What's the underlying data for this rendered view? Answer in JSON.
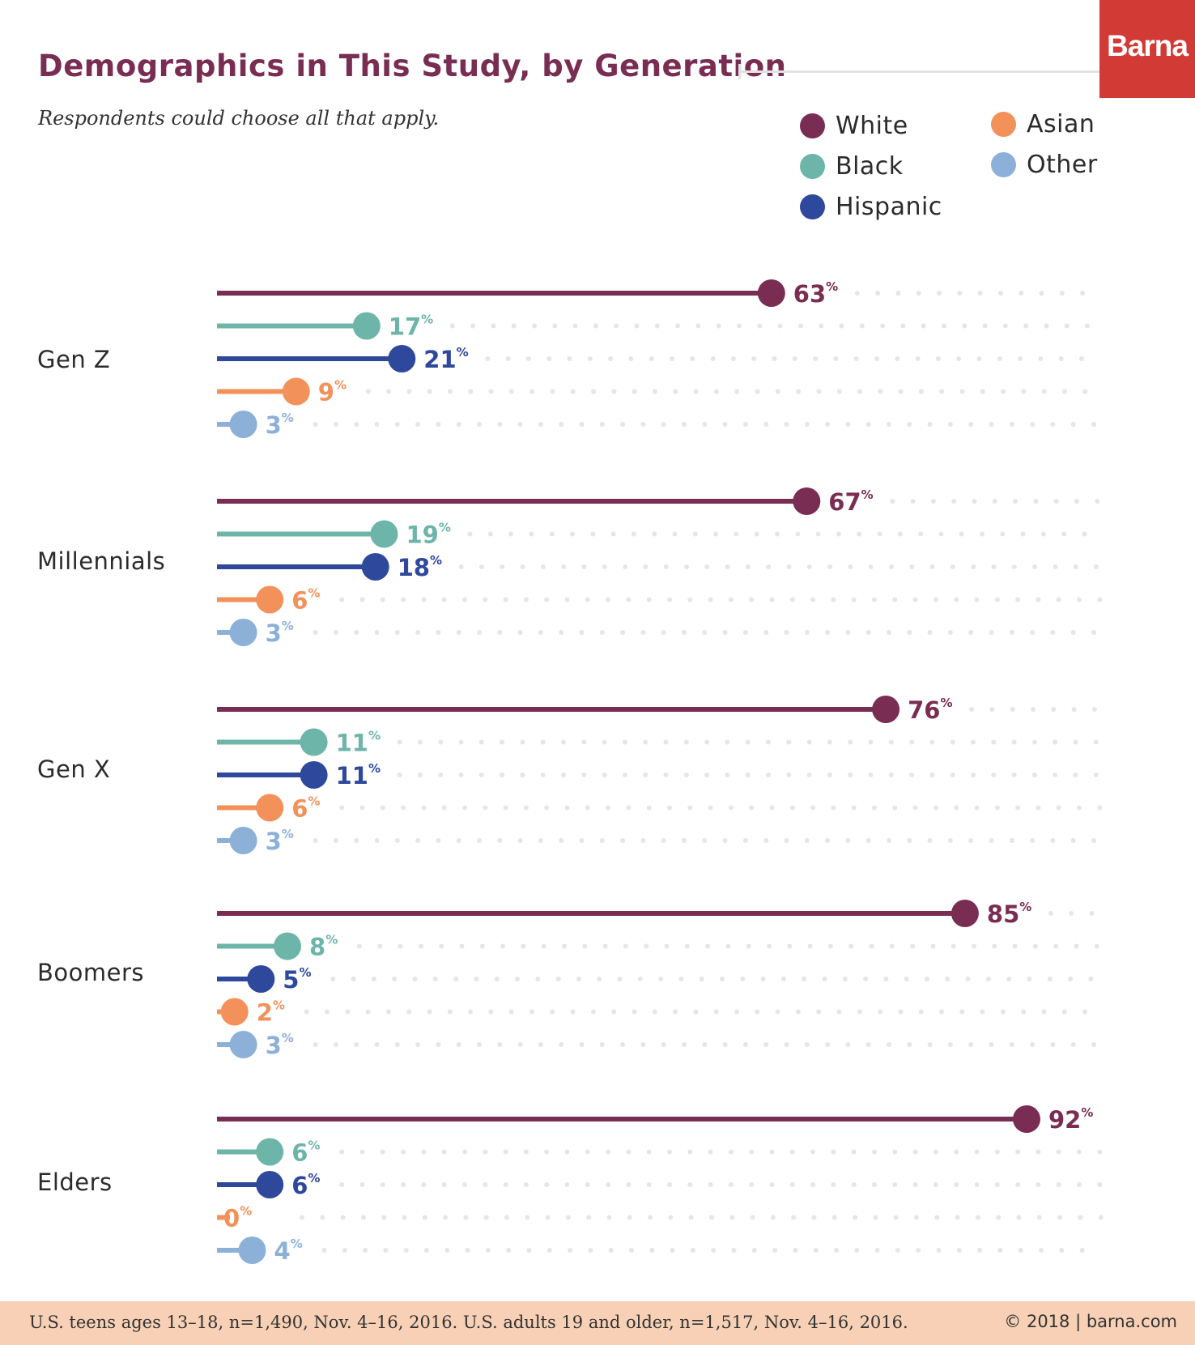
{
  "brand": "Barna",
  "footer": {
    "source": "U.S. teens ages 13–18, n=1,490, Nov. 4–16, 2016. U.S. adults 19 and older, n=1,517, Nov. 4–16, 2016.",
    "copyright": "© 2018 | barna.com"
  },
  "colors": {
    "title": "#7a2d52",
    "brand": "#d23a36",
    "footer": "#f7d0b5",
    "dots": "#e6e6e6"
  },
  "chart_data": {
    "type": "bar",
    "orientation": "horizontal",
    "style": "lollipop",
    "title": "Demographics in This Study, by Generation",
    "subtitle": "Respondents could choose all that apply.",
    "value_suffix": "%",
    "xlim": [
      0,
      100
    ],
    "grid": "dotted",
    "legend_position": "top-right",
    "categories": [
      "Gen Z",
      "Millennials",
      "Gen X",
      "Boomers",
      "Elders"
    ],
    "series": [
      {
        "name": "White",
        "color": "#7a2d52",
        "values": [
          63,
          67,
          76,
          85,
          92
        ]
      },
      {
        "name": "Black",
        "color": "#6db5a8",
        "values": [
          17,
          19,
          11,
          8,
          6
        ]
      },
      {
        "name": "Hispanic",
        "color": "#2e489c",
        "values": [
          21,
          18,
          11,
          5,
          6
        ]
      },
      {
        "name": "Asian",
        "color": "#f2925a",
        "values": [
          9,
          6,
          6,
          2,
          0
        ]
      },
      {
        "name": "Other",
        "color": "#8db0d9",
        "values": [
          3,
          3,
          3,
          3,
          4
        ]
      }
    ]
  }
}
